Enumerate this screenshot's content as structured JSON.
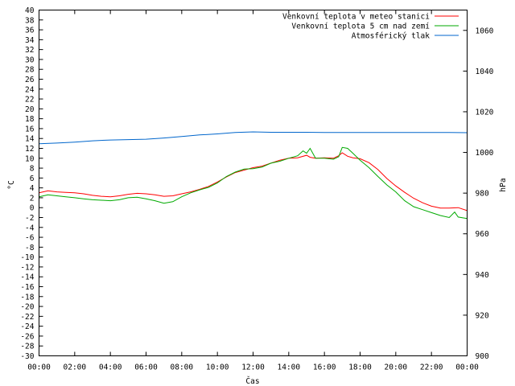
{
  "chart_data": {
    "type": "line",
    "xlabel": "Čas",
    "ylabel_left": "°C",
    "ylabel_right": "hPa",
    "x_ticks": [
      "00:00",
      "02:00",
      "04:00",
      "06:00",
      "08:00",
      "10:00",
      "12:00",
      "14:00",
      "16:00",
      "18:00",
      "20:00",
      "22:00",
      "00:00"
    ],
    "x_range": [
      0,
      24
    ],
    "y_left_range": [
      -30,
      40
    ],
    "y_left_step": 2,
    "y_right_range": [
      900,
      1070
    ],
    "y_right_ticks": [
      900,
      920,
      940,
      960,
      980,
      1000,
      1020,
      1040,
      1060
    ],
    "grid": false,
    "legend_position": "top-right",
    "series": [
      {
        "name": "Venkovní teplota v meteo stanici",
        "color": "#ff0000",
        "axis": "left",
        "x": [
          0,
          0.5,
          1,
          1.5,
          2,
          2.5,
          3,
          3.5,
          4,
          4.5,
          5,
          5.5,
          6,
          6.5,
          7,
          7.5,
          8,
          8.5,
          9,
          9.5,
          10,
          10.5,
          11,
          11.5,
          12,
          12.5,
          13,
          13.5,
          14,
          14.5,
          15,
          15.2,
          15.5,
          16,
          16.5,
          16.8,
          17,
          17.3,
          17.6,
          18,
          18.5,
          19,
          19.5,
          20,
          20.5,
          21,
          21.5,
          22,
          22.5,
          23,
          23.5,
          24
        ],
        "values": [
          3,
          3.4,
          3.2,
          3.1,
          3,
          2.8,
          2.5,
          2.3,
          2.2,
          2.4,
          2.7,
          2.9,
          2.8,
          2.6,
          2.3,
          2.4,
          2.8,
          3.2,
          3.7,
          4.3,
          5.2,
          6.2,
          7.1,
          7.6,
          8.1,
          8.4,
          9,
          9.6,
          10,
          10.1,
          10.6,
          10.2,
          10,
          10.1,
          10,
          10.5,
          11.1,
          10.4,
          10.1,
          9.9,
          9.1,
          7.7,
          5.9,
          4.4,
          3.1,
          1.9,
          1,
          0.3,
          -0.1,
          -0.1,
          0,
          -0.6
        ]
      },
      {
        "name": "Venkovní teplota 5 cm nad zemí",
        "color": "#00aa00",
        "axis": "left",
        "x": [
          0,
          0.5,
          1,
          1.5,
          2,
          2.5,
          3,
          3.5,
          4,
          4.5,
          5,
          5.5,
          6,
          6.5,
          7,
          7.5,
          8,
          8.5,
          9,
          9.5,
          10,
          10.5,
          11,
          11.5,
          12,
          12.5,
          13,
          13.5,
          14,
          14.5,
          14.8,
          15,
          15.2,
          15.5,
          16,
          16.5,
          16.8,
          17,
          17.3,
          17.6,
          18,
          18.5,
          19,
          19.5,
          20,
          20.5,
          21,
          21.5,
          22,
          22.5,
          23,
          23.3,
          23.5,
          24
        ],
        "values": [
          2.2,
          2.6,
          2.4,
          2.2,
          2,
          1.8,
          1.6,
          1.5,
          1.4,
          1.6,
          2,
          2.1,
          1.8,
          1.4,
          0.9,
          1.2,
          2.2,
          3,
          3.6,
          4.1,
          5,
          6.3,
          7.2,
          7.8,
          7.9,
          8.2,
          9,
          9.4,
          10,
          10.5,
          11.5,
          11,
          12,
          10,
          10,
          9.8,
          10.3,
          12.2,
          12,
          11,
          9.6,
          8.1,
          6.3,
          4.6,
          3.2,
          1.4,
          0.2,
          -0.4,
          -1,
          -1.6,
          -2,
          -0.9,
          -1.9,
          -2.2
        ]
      },
      {
        "name": "Atmosférický tlak",
        "color": "#0066cc",
        "axis": "right",
        "x": [
          0,
          1,
          2,
          3,
          4,
          5,
          6,
          7,
          8,
          9,
          10,
          11,
          12,
          13,
          14,
          15,
          16,
          17,
          18,
          19,
          20,
          21,
          22,
          23,
          24
        ],
        "values": [
          1004.3,
          1004.6,
          1005.1,
          1005.7,
          1006.1,
          1006.3,
          1006.5,
          1007.1,
          1007.8,
          1008.6,
          1009.1,
          1009.8,
          1010.1,
          1009.9,
          1009.9,
          1009.9,
          1009.8,
          1009.8,
          1009.8,
          1009.8,
          1009.8,
          1009.8,
          1009.8,
          1009.8,
          1009.7
        ]
      }
    ]
  }
}
